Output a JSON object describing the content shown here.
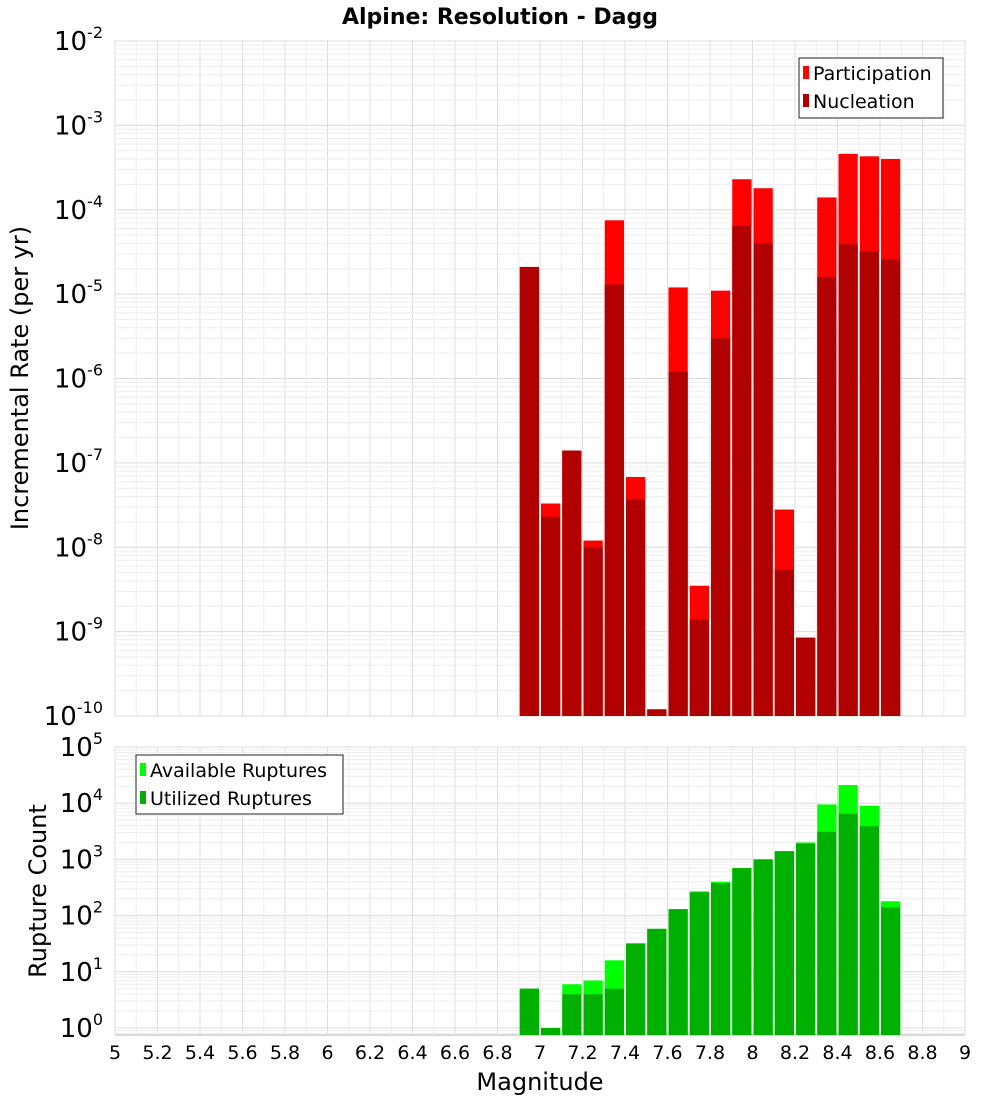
{
  "title": "Alpine: Resolution - Dagg",
  "xlabel": "Magnitude",
  "x_ticks": [
    "5",
    "5.2",
    "5.4",
    "5.6",
    "5.8",
    "6",
    "6.2",
    "6.4",
    "6.6",
    "6.8",
    "7",
    "7.2",
    "7.4",
    "7.6",
    "7.8",
    "8",
    "8.2",
    "8.4",
    "8.6",
    "8.8",
    "9"
  ],
  "chart_data": [
    {
      "type": "bar",
      "ylabel": "Incremental Rate (per yr)",
      "y_scale": "log",
      "ylim": [
        1e-10,
        0.01
      ],
      "xlim": [
        5,
        9
      ],
      "x": [
        6.95,
        7.05,
        7.15,
        7.25,
        7.35,
        7.45,
        7.55,
        7.65,
        7.75,
        7.85,
        7.95,
        8.05,
        8.15,
        8.25,
        8.35,
        8.45,
        8.55,
        8.65
      ],
      "bar_width": 0.1,
      "overlay": true,
      "grid": true,
      "legend_position": "top-right",
      "series": [
        {
          "name": "Participation",
          "color": "#ff0000",
          "values": [
            2.1e-05,
            3.3e-08,
            1.4e-07,
            1.2e-08,
            7.5e-05,
            6.8e-08,
            1.2e-10,
            1.2e-05,
            3.5e-09,
            1.1e-05,
            0.00023,
            0.00018,
            2.8e-08,
            8.5e-10,
            0.00014,
            0.00046,
            0.00043,
            0.0004
          ]
        },
        {
          "name": "Nucleation",
          "color": "#b00000",
          "values": [
            2.1e-05,
            2.3e-08,
            1.4e-07,
            1e-08,
            1.3e-05,
            3.7e-08,
            1.2e-10,
            1.2e-06,
            1.4e-09,
            3e-06,
            6.4e-05,
            4e-05,
            5.4e-09,
            8.5e-10,
            1.6e-05,
            3.9e-05,
            3.2e-05,
            2.6e-05
          ]
        }
      ]
    },
    {
      "type": "bar",
      "ylabel": "Rupture Count",
      "y_scale": "log",
      "ylim": [
        0.75,
        100000.0
      ],
      "xlim": [
        5,
        9
      ],
      "x": [
        6.95,
        7.05,
        7.15,
        7.25,
        7.35,
        7.45,
        7.55,
        7.65,
        7.75,
        7.85,
        7.95,
        8.05,
        8.15,
        8.25,
        8.35,
        8.45,
        8.55,
        8.65
      ],
      "bar_width": 0.1,
      "overlay": true,
      "grid": true,
      "legend_position": "top-left",
      "series": [
        {
          "name": "Available Ruptures",
          "color": "#00ff00",
          "values": [
            5,
            1,
            6,
            7,
            16,
            32,
            58,
            130,
            270,
            400,
            700,
            1000,
            1400,
            2000,
            9500,
            21000,
            9000,
            180
          ]
        },
        {
          "name": "Utilized Ruptures",
          "color": "#00b000",
          "values": [
            5,
            1,
            4,
            4,
            5,
            32,
            58,
            130,
            260,
            380,
            700,
            1000,
            1400,
            1900,
            3100,
            6500,
            3900,
            140
          ]
        }
      ]
    }
  ]
}
